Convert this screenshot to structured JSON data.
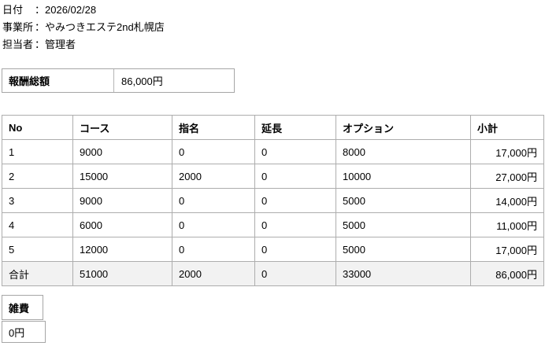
{
  "header": {
    "lines": [
      {
        "label": "日付",
        "separator": "：",
        "value": "2026/02/28"
      },
      {
        "label": "事業所",
        "separator": "：",
        "value": "やみつきエステ2nd札幌店"
      },
      {
        "label": "担当者",
        "separator": "：",
        "value": "管理者"
      }
    ]
  },
  "total_box": {
    "label": "報酬総額",
    "value": "86,000円"
  },
  "table": {
    "columns": [
      "No",
      "コース",
      "指名",
      "延長",
      "オプション",
      "小計"
    ],
    "rows": [
      [
        "1",
        "9000",
        "0",
        "0",
        "8000",
        "17,000円"
      ],
      [
        "2",
        "15000",
        "2000",
        "0",
        "10000",
        "27,000円"
      ],
      [
        "3",
        "9000",
        "0",
        "0",
        "5000",
        "14,000円"
      ],
      [
        "4",
        "6000",
        "0",
        "0",
        "5000",
        "11,000円"
      ],
      [
        "5",
        "12000",
        "0",
        "0",
        "5000",
        "17,000円"
      ]
    ],
    "total_row": [
      "合計",
      "51000",
      "2000",
      "0",
      "33000",
      "86,000円"
    ]
  },
  "misc_box": {
    "label": "雑費",
    "value": "0円"
  },
  "colors": {
    "border": "#a6a6a6",
    "total_row_bg": "#f2f2f2",
    "text": "#000000",
    "background": "#ffffff"
  }
}
